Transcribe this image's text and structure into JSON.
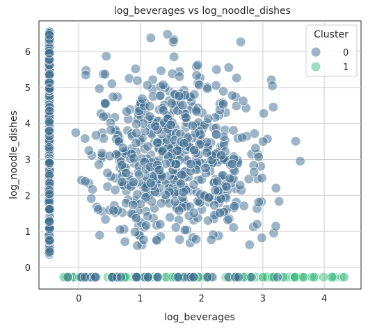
{
  "chart_data": {
    "type": "scatter",
    "title": "log_beverages vs log_noodle_dishes",
    "xlabel": "log_beverages",
    "ylabel": "log_noodle_dishes",
    "xlim": [
      -0.65,
      4.6
    ],
    "ylim": [
      -0.6,
      6.85
    ],
    "xticks": [
      0,
      1,
      2,
      3,
      4
    ],
    "yticks": [
      0,
      1,
      2,
      3,
      4,
      5,
      6
    ],
    "grid": true,
    "legend": {
      "title": "Cluster",
      "placement": "top-right"
    },
    "series": [
      {
        "name": "0",
        "color": "#3b6b8f",
        "description_of_shape": "dense cloud x 0-3.6, y 0.5-6.5; plus vertical column at x=-0.48 spanning y 0.3-6.6; plus some points along y=-0.27",
        "column_x": -0.48,
        "column_y_range": [
          0.32,
          6.55
        ],
        "cloud": {
          "x_range": [
            -0.05,
            3.65
          ],
          "y_range": [
            0.55,
            6.5
          ],
          "center": [
            1.55,
            3.1
          ],
          "count": 620
        },
        "baseline_y": -0.27,
        "baseline_x_range": [
          -0.2,
          3.3
        ],
        "baseline_count": 40
      },
      {
        "name": "1",
        "color": "#3dbc81",
        "baseline_y": -0.27,
        "x_range": [
          -0.25,
          4.35
        ],
        "count": 120
      }
    ]
  }
}
